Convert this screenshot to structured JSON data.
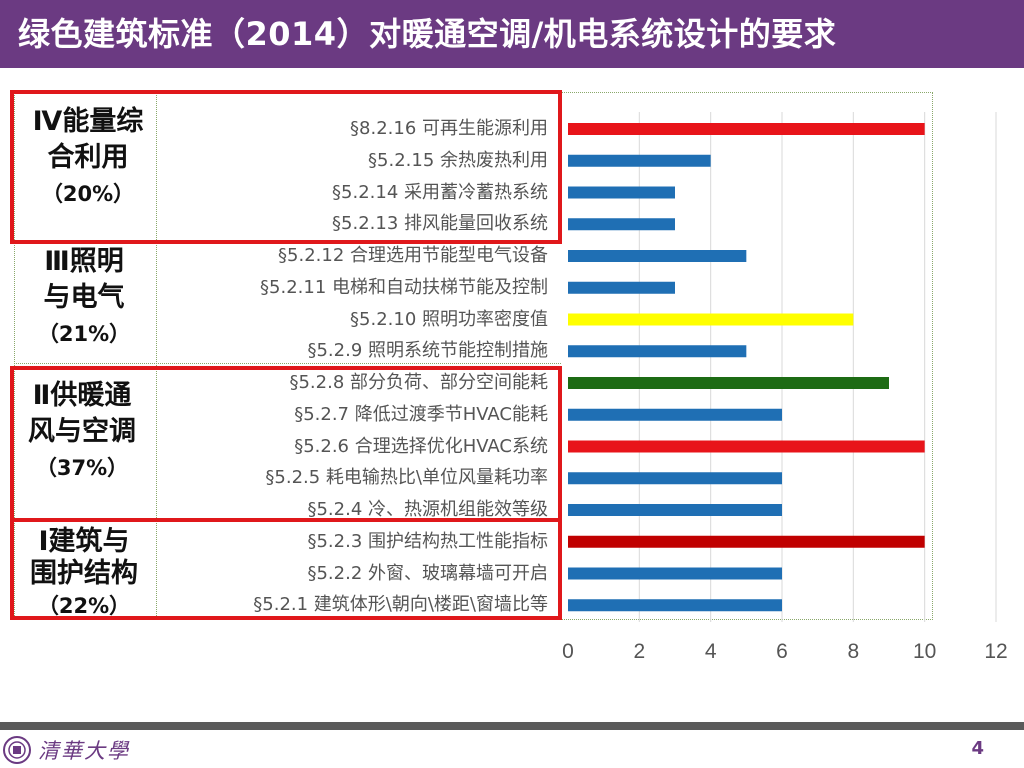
{
  "title": "绿色建筑标准（2014）对暖通空调/机电系统设计的要求",
  "groups": [
    {
      "line1": "Ⅳ能量综",
      "line2": "合利用",
      "pct": "（20%）"
    },
    {
      "line1": "Ⅲ照明",
      "line2": "与电气",
      "pct": "（21%）"
    },
    {
      "line1": "Ⅱ供暖通",
      "line2": "风与空调",
      "pct": "（37%）"
    },
    {
      "line1": "Ⅰ建筑与",
      "line2": "围护结构",
      "pct": "（22%）"
    }
  ],
  "colors": {
    "title_bg": "#6b3a82",
    "highlight_box": "#e0181b",
    "bar_blue": "#1f6fb4",
    "bar_red": "#e8141a",
    "bar_yellow": "#ffff00",
    "bar_green": "#1d6b14",
    "bar_darkred": "#c00000"
  },
  "chart_data": {
    "type": "bar",
    "orientation": "horizontal",
    "categories": [
      "§8.2.16  可再生能源利用",
      "§5.2.15  余热废热利用",
      "§5.2.14  采用蓄冷蓄热系统",
      "§5.2.13  排风能量回收系统",
      "§5.2.12  合理选用节能型电气设备",
      "§5.2.11  电梯和自动扶梯节能及控制",
      "§5.2.10  照明功率密度值",
      "§5.2.9  照明系统节能控制措施",
      "§5.2.8  部分负荷、部分空间能耗",
      "§5.2.7  降低过渡季节HVAC能耗",
      "§5.2.6 合理选择优化HVAC系统",
      "§5.2.5 耗电输热比\\单位风量耗功率",
      "§5.2.4 冷、热源机组能效等级",
      "§5.2.3  围护结构热工性能指标",
      "§5.2.2  外窗、玻璃幕墙可开启",
      "§5.2.1  建筑体形\\朝向\\楼距\\窗墙比等"
    ],
    "values": [
      10,
      4,
      3,
      3,
      5,
      3,
      8,
      5,
      9,
      6,
      10,
      6,
      6,
      10,
      6,
      6
    ],
    "bar_colors": [
      "red",
      "blue",
      "blue",
      "blue",
      "blue",
      "blue",
      "yellow",
      "blue",
      "green",
      "blue",
      "red",
      "blue",
      "blue",
      "darkred",
      "blue",
      "blue"
    ],
    "xlim": [
      0,
      12
    ],
    "xticks": [
      0,
      2,
      4,
      6,
      8,
      10,
      12
    ],
    "grid": "vertical"
  },
  "footer": {
    "logo_text": "清華大學",
    "page_number": "4"
  }
}
